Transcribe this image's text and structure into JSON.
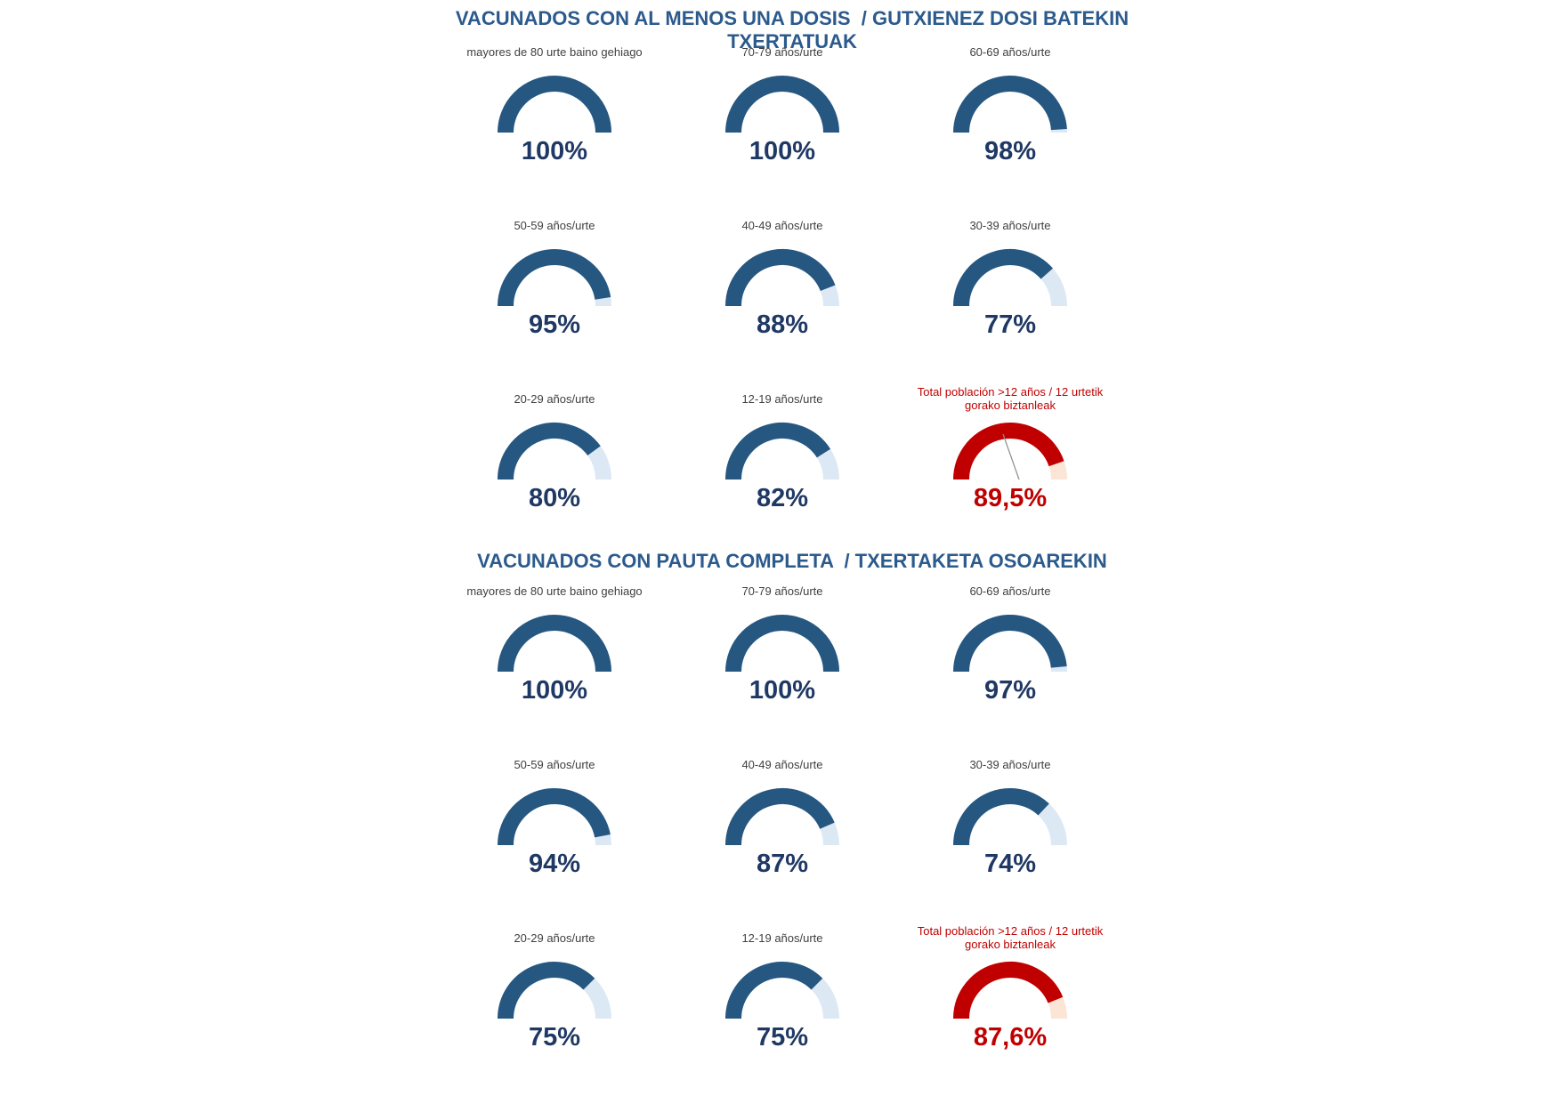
{
  "page": {
    "background": "#FFFFFF"
  },
  "colors": {
    "title": "#2B5A8C",
    "gauge_blue": "#265781",
    "gauge_blue_rest": "#DCE9F5",
    "value_blue": "#1F3864",
    "label_gray": "#3F3F3F",
    "gauge_red": "#C00000",
    "gauge_red_rest": "#FBE5D6",
    "value_red": "#C00000",
    "needle_gray": "#8C8C8C"
  },
  "chart_data": [
    {
      "type": "gauge",
      "title": "VACUNADOS CON AL MENOS UNA DOSIS  / GUTXIENEZ DOSI BATEKIN TXERTATUAK",
      "layout": "3x3-grid",
      "scale": {
        "min": 0,
        "max": 100,
        "sweep_degrees": 180
      },
      "gauges": [
        {
          "label": "mayores de 80 urte baino gehiago",
          "value": 100,
          "display": "100%",
          "theme": "blue",
          "needle": false
        },
        {
          "label": "70-79 años/urte",
          "value": 100,
          "display": "100%",
          "theme": "blue",
          "needle": false
        },
        {
          "label": "60-69 años/urte",
          "value": 98,
          "display": "98%",
          "theme": "blue",
          "needle": false
        },
        {
          "label": "50-59 años/urte",
          "value": 95,
          "display": "95%",
          "theme": "blue",
          "needle": false
        },
        {
          "label": "40-49 años/urte",
          "value": 88,
          "display": "88%",
          "theme": "blue",
          "needle": false
        },
        {
          "label": "30-39 años/urte",
          "value": 77,
          "display": "77%",
          "theme": "blue",
          "needle": false
        },
        {
          "label": "20-29 años/urte",
          "value": 80,
          "display": "80%",
          "theme": "blue",
          "needle": false
        },
        {
          "label": "12-19 años/urte",
          "value": 82,
          "display": "82%",
          "theme": "blue",
          "needle": false
        },
        {
          "label": "Total población >12 años / 12 urtetik gorako biztanleak",
          "value": 89.5,
          "display": "89,5%",
          "theme": "red",
          "needle": true
        }
      ]
    },
    {
      "type": "gauge",
      "title": "VACUNADOS CON PAUTA COMPLETA  / TXERTAKETA OSOAREKIN",
      "layout": "3x3-grid",
      "scale": {
        "min": 0,
        "max": 100,
        "sweep_degrees": 180
      },
      "gauges": [
        {
          "label": "mayores de 80 urte baino gehiago",
          "value": 100,
          "display": "100%",
          "theme": "blue",
          "needle": false
        },
        {
          "label": "70-79 años/urte",
          "value": 100,
          "display": "100%",
          "theme": "blue",
          "needle": false
        },
        {
          "label": "60-69 años/urte",
          "value": 97,
          "display": "97%",
          "theme": "blue",
          "needle": false
        },
        {
          "label": "50-59 años/urte",
          "value": 94,
          "display": "94%",
          "theme": "blue",
          "needle": false
        },
        {
          "label": "40-49 años/urte",
          "value": 87,
          "display": "87%",
          "theme": "blue",
          "needle": false
        },
        {
          "label": "30-39 años/urte",
          "value": 74,
          "display": "74%",
          "theme": "blue",
          "needle": false
        },
        {
          "label": "20-29 años/urte",
          "value": 75,
          "display": "75%",
          "theme": "blue",
          "needle": false
        },
        {
          "label": "12-19 años/urte",
          "value": 75,
          "display": "75%",
          "theme": "blue",
          "needle": false
        },
        {
          "label": "Total población >12 años / 12 urtetik gorako biztanleak",
          "value": 87.6,
          "display": "87,6%",
          "theme": "red",
          "needle": false
        }
      ]
    }
  ]
}
